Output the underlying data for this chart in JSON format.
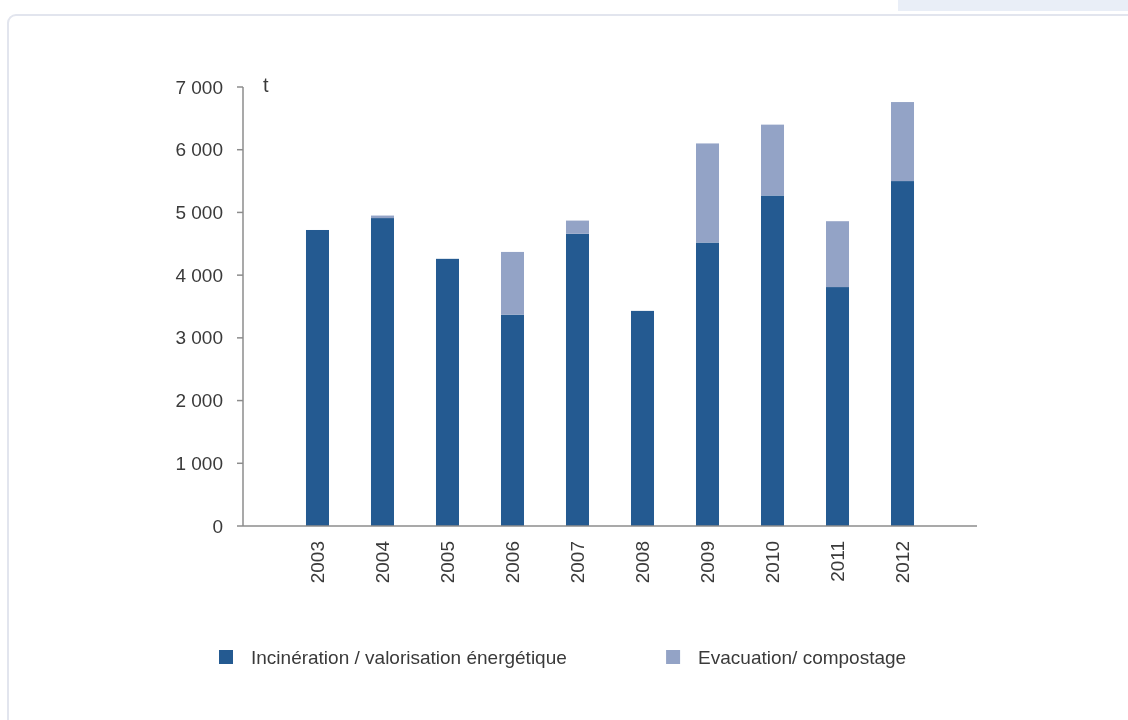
{
  "chart_data": {
    "type": "bar",
    "stacked": true,
    "ylabel": "t",
    "legend": "bottom",
    "categories": [
      "2003",
      "2004",
      "2005",
      "2006",
      "2007",
      "2008",
      "2009",
      "2010",
      "2011",
      "2012"
    ],
    "series": [
      {
        "name": "Incinération / valorisation énergétique",
        "color": "#245a91",
        "values": [
          4720,
          4910,
          4260,
          3370,
          4660,
          3430,
          4520,
          5270,
          3810,
          5500
        ]
      },
      {
        "name": "Evacuation/ compostage",
        "color": "#93a3c6",
        "values": [
          null,
          40,
          null,
          1000,
          210,
          null,
          1580,
          1130,
          1050,
          1260
        ]
      }
    ],
    "ylim": [
      0,
      7000
    ],
    "yticks": [
      0,
      {
        "value": 1000,
        "label": "1 000"
      },
      {
        "value": 2000,
        "label": "2 000"
      },
      {
        "value": 3000,
        "label": "3 000"
      },
      {
        "value": 4000,
        "label": "4 000"
      },
      {
        "value": 5000,
        "label": "5 000"
      },
      {
        "value": 6000,
        "label": "6 000"
      },
      {
        "value": 7000,
        "label": "7 000"
      }
    ]
  }
}
